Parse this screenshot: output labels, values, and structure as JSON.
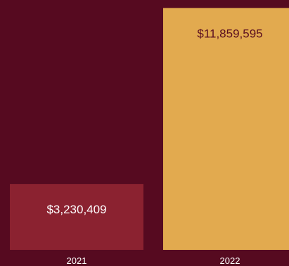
{
  "colors": {
    "background": "#560a20",
    "bar_2021": "#8b2230",
    "bar_2022": "#e2aa4f",
    "label_on_dark": "#ffffff",
    "label_on_light": "#5a0e1f",
    "tick_text": "#ffffff"
  },
  "chart_data": {
    "type": "bar",
    "categories": [
      "2021",
      "2022"
    ],
    "values": [
      3230409,
      11859595
    ],
    "data_labels": [
      "$3,230,409",
      "$11,859,595"
    ],
    "title": "",
    "xlabel": "",
    "ylabel": "",
    "ylim": [
      0,
      12250000
    ],
    "grid": false,
    "legend": "none"
  }
}
